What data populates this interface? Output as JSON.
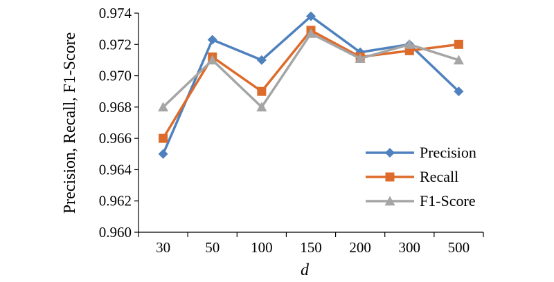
{
  "chart_data": {
    "type": "line",
    "title": "",
    "xlabel": "d",
    "ylabel": "Precision, Recall, F1-Score",
    "categories": [
      "30",
      "50",
      "100",
      "150",
      "200",
      "300",
      "500"
    ],
    "ylim": [
      0.96,
      0.974
    ],
    "yticks": [
      "0.960",
      "0.962",
      "0.964",
      "0.966",
      "0.968",
      "0.970",
      "0.972",
      "0.974"
    ],
    "grid": false,
    "legend_position": "bottom-right",
    "series": [
      {
        "name": "Precision",
        "color": "#4E81BD",
        "marker": "diamond",
        "values": [
          0.965,
          0.9723,
          0.971,
          0.9738,
          0.9715,
          0.972,
          0.969
        ]
      },
      {
        "name": "Recall",
        "color": "#DD6B2B",
        "marker": "square",
        "values": [
          0.966,
          0.9712,
          0.969,
          0.9729,
          0.9712,
          0.9716,
          0.972
        ]
      },
      {
        "name": "F1-Score",
        "color": "#A5A5A5",
        "marker": "triangle",
        "values": [
          0.968,
          0.971,
          0.968,
          0.9727,
          0.9711,
          0.972,
          0.971
        ]
      }
    ]
  }
}
